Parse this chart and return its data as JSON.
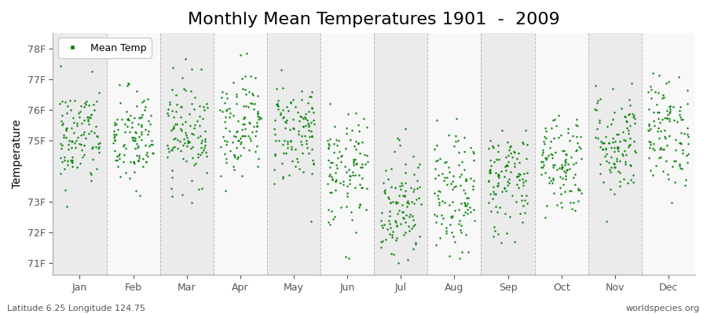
{
  "title": "Monthly Mean Temperatures 1901  -  2009",
  "ylabel": "Temperature",
  "ylim": [
    70.6,
    78.5
  ],
  "yticks": [
    71,
    72,
    73,
    75,
    76,
    77,
    78
  ],
  "ytick_labels": [
    "71F",
    "72F",
    "73F",
    "75F",
    "76F",
    "77F",
    "78F"
  ],
  "months": [
    "Jan",
    "Feb",
    "Mar",
    "Apr",
    "May",
    "Jun",
    "Jul",
    "Aug",
    "Sep",
    "Oct",
    "Nov",
    "Dec"
  ],
  "dot_color": "#008000",
  "band_color_odd": "#ebebeb",
  "band_color_even": "#f8f8f8",
  "footer_left": "Latitude 6.25 Longitude 124.75",
  "footer_right": "worldspecies.org",
  "n_years": 109,
  "month_means": [
    75.1,
    75.0,
    75.3,
    75.6,
    75.3,
    73.9,
    72.9,
    73.1,
    73.7,
    74.3,
    74.9,
    75.3
  ],
  "month_stds": [
    0.85,
    0.85,
    0.85,
    0.85,
    0.85,
    0.95,
    1.0,
    1.0,
    0.9,
    0.85,
    0.9,
    0.9
  ],
  "random_seed": 42,
  "title_fontsize": 16,
  "axis_label_fontsize": 10,
  "tick_fontsize": 9,
  "footer_fontsize": 8,
  "dot_size": 3
}
